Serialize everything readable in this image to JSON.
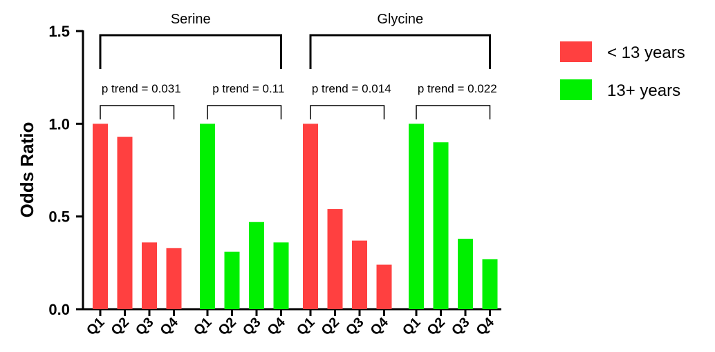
{
  "chart_data": {
    "type": "bar",
    "ylabel": "Odds Ratio",
    "ylim": [
      0,
      1.5
    ],
    "yticks": [
      "0.0",
      "0.5",
      "1.0",
      "1.5"
    ],
    "legend": [
      {
        "label": "< 13 years",
        "color": "#ff4040"
      },
      {
        "label": "13+ years",
        "color": "#00f000"
      }
    ],
    "panels": [
      {
        "name": "Serine",
        "groups": [
          {
            "series": "< 13 years",
            "color": "#ff4040",
            "p_trend": "p trend = 0.031",
            "categories": [
              "Q1",
              "Q2",
              "Q3",
              "Q4"
            ],
            "values": [
              1.0,
              0.93,
              0.36,
              0.33
            ]
          },
          {
            "series": "13+ years",
            "color": "#00f000",
            "p_trend": "p trend = 0.11",
            "categories": [
              "Q1",
              "Q2",
              "Q3",
              "Q4"
            ],
            "values": [
              1.0,
              0.31,
              0.47,
              0.36
            ]
          }
        ]
      },
      {
        "name": "Glycine",
        "groups": [
          {
            "series": "< 13 years",
            "color": "#ff4040",
            "p_trend": "p trend = 0.014",
            "categories": [
              "Q1",
              "Q2",
              "Q3",
              "Q4"
            ],
            "values": [
              1.0,
              0.54,
              0.37,
              0.24
            ]
          },
          {
            "series": "13+ years",
            "color": "#00f000",
            "p_trend": "p trend = 0.022",
            "categories": [
              "Q1",
              "Q2",
              "Q3",
              "Q4"
            ],
            "values": [
              1.0,
              0.9,
              0.38,
              0.27
            ]
          }
        ]
      }
    ]
  }
}
